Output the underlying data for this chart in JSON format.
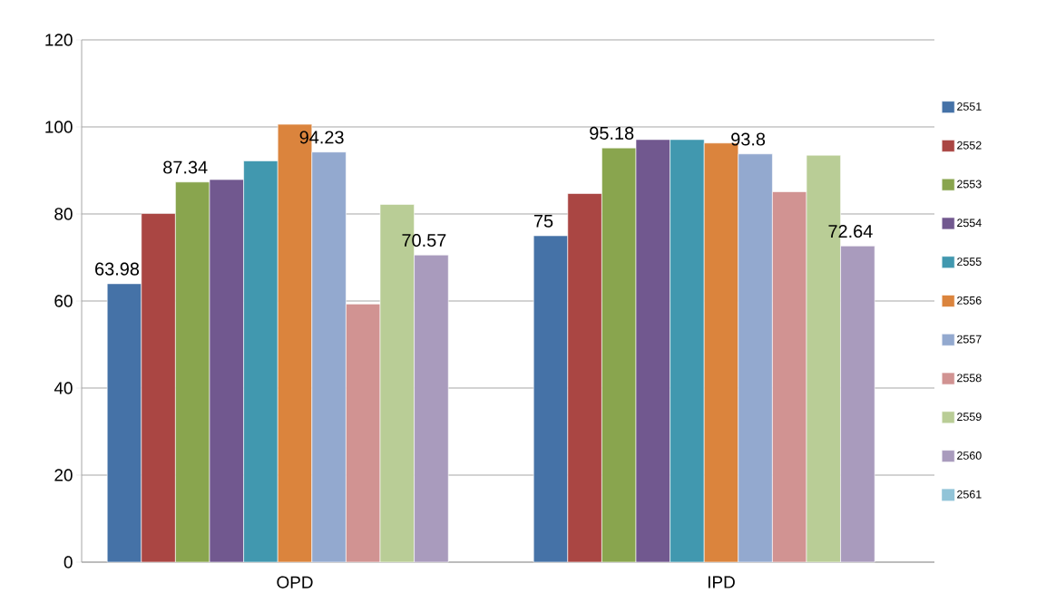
{
  "chart_data": {
    "type": "bar",
    "categories": [
      "OPD",
      "IPD"
    ],
    "series": [
      {
        "name": "2551",
        "color": "#4572a7",
        "values": [
          63.98,
          75
        ],
        "value_labels": [
          "63.98",
          "75"
        ]
      },
      {
        "name": "2552",
        "color": "#aa4643",
        "values": [
          80.1,
          84.7
        ],
        "value_labels": [
          null,
          null
        ]
      },
      {
        "name": "2553",
        "color": "#89a54e",
        "values": [
          87.34,
          95.18
        ],
        "value_labels": [
          "87.34",
          "95.18"
        ]
      },
      {
        "name": "2554",
        "color": "#71588f",
        "values": [
          87.9,
          97.1
        ],
        "value_labels": [
          null,
          null
        ]
      },
      {
        "name": "2555",
        "color": "#4198af",
        "values": [
          92.2,
          97.1
        ],
        "value_labels": [
          null,
          null
        ]
      },
      {
        "name": "2556",
        "color": "#db843d",
        "values": [
          100.6,
          96.3
        ],
        "value_labels": [
          null,
          null
        ]
      },
      {
        "name": "2557",
        "color": "#93a9cf",
        "values": [
          94.23,
          93.8
        ],
        "value_labels": [
          "94.23",
          "93.8"
        ]
      },
      {
        "name": "2558",
        "color": "#d19392",
        "values": [
          59.3,
          85.1
        ],
        "value_labels": [
          null,
          null
        ]
      },
      {
        "name": "2559",
        "color": "#b9cd96",
        "values": [
          82.2,
          93.5
        ],
        "value_labels": [
          null,
          null
        ]
      },
      {
        "name": "2560",
        "color": "#a99bbd",
        "values": [
          70.57,
          72.64
        ],
        "value_labels": [
          "70.57",
          "72.64"
        ]
      },
      {
        "name": "2561",
        "color": "#92c4d8",
        "values": [
          null,
          null
        ]
      }
    ],
    "ylim": [
      0,
      120
    ],
    "yticks": [
      0,
      20,
      40,
      60,
      80,
      100,
      120
    ],
    "grid": "y",
    "legend": "right"
  }
}
